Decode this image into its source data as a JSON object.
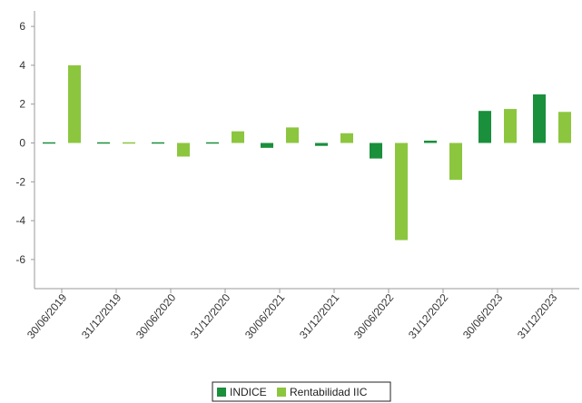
{
  "chart_data": {
    "type": "bar",
    "title": "",
    "xlabel": "",
    "ylabel": "",
    "ylim": [
      -7.5,
      6.8
    ],
    "yticks": [
      6,
      4,
      2,
      0,
      -2,
      -4,
      -6
    ],
    "grid": false,
    "legend_position": "bottom-center",
    "categories": [
      "30/06/2019",
      "31/12/2019",
      "30/06/2020",
      "31/12/2020",
      "30/06/2021",
      "31/12/2021",
      "30/06/2022",
      "31/12/2022",
      "30/06/2023",
      "31/12/2023"
    ],
    "series": [
      {
        "name": "INDICE",
        "color": "#1a8f3c",
        "values": [
          0.0,
          0.05,
          0.05,
          0.0,
          -0.25,
          -0.15,
          -0.8,
          0.12,
          1.65,
          2.5
        ]
      },
      {
        "name": "Rentabilidad IIC",
        "color": "#8cc63f",
        "values": [
          4.0,
          0.0,
          -0.7,
          0.6,
          0.8,
          0.5,
          -5.0,
          -1.9,
          1.75,
          1.6
        ]
      }
    ]
  }
}
